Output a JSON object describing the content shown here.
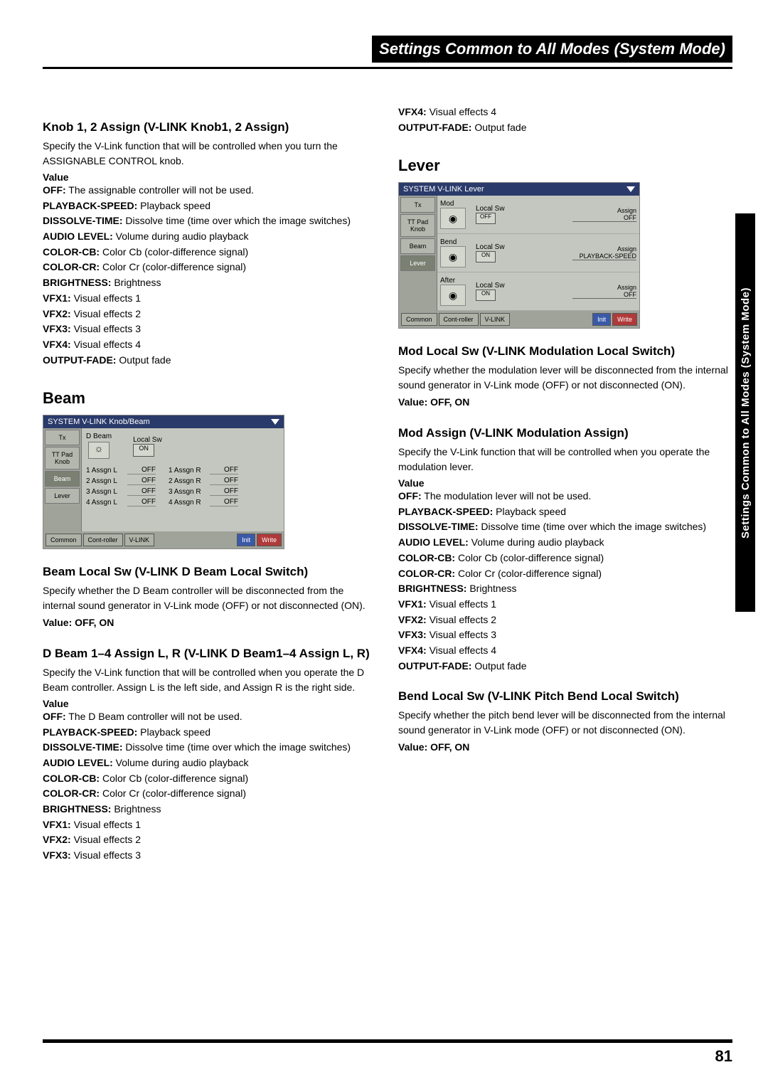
{
  "header": {
    "title": "Settings Common to All Modes (System Mode)"
  },
  "sidebar": {
    "label": "Settings Common to All Modes (System Mode)"
  },
  "footer": {
    "page": "81"
  },
  "knob": {
    "heading": "Knob 1, 2 Assign (V-LINK Knob1, 2 Assign)",
    "desc": "Specify the V-Link function that will be controlled when you turn the ASSIGNABLE CONTROL knob.",
    "value_label": "Value",
    "opts": [
      {
        "k": "OFF:",
        "v": "The assignable controller will not be used."
      },
      {
        "k": "PLAYBACK-SPEED:",
        "v": "Playback speed"
      },
      {
        "k": "DISSOLVE-TIME:",
        "v": "Dissolve time (time over which the image switches)"
      },
      {
        "k": "AUDIO LEVEL:",
        "v": "Volume during audio playback"
      },
      {
        "k": "COLOR-CB:",
        "v": "Color Cb (color-difference signal)"
      },
      {
        "k": "COLOR-CR:",
        "v": "Color Cr (color-difference signal)"
      },
      {
        "k": "BRIGHTNESS:",
        "v": "Brightness"
      },
      {
        "k": "VFX1:",
        "v": "Visual effects 1"
      },
      {
        "k": "VFX2:",
        "v": "Visual effects 2"
      },
      {
        "k": "VFX3:",
        "v": "Visual effects 3"
      },
      {
        "k": "VFX4:",
        "v": "Visual effects 4"
      },
      {
        "k": "OUTPUT-FADE:",
        "v": "Output fade"
      }
    ]
  },
  "beam_section": {
    "heading": "Beam"
  },
  "beam_ss": {
    "title": "SYSTEM V-LINK Knob/Beam",
    "tabs": [
      "Tx",
      "TT Pad Knob",
      "Beam",
      "Lever"
    ],
    "top_label": "D Beam",
    "local_sw_label": "Local Sw",
    "local_sw_val": "ON",
    "rows": [
      [
        "1 Assgn L",
        "OFF",
        "1 Assgn R",
        "OFF"
      ],
      [
        "2 Assgn L",
        "OFF",
        "2 Assgn R",
        "OFF"
      ],
      [
        "3 Assgn L",
        "OFF",
        "3 Assgn R",
        "OFF"
      ],
      [
        "4 Assgn L",
        "OFF",
        "4 Assgn R",
        "OFF"
      ]
    ],
    "bottom": [
      "Common",
      "Cont-roller",
      "V-LINK",
      "Init",
      "Write"
    ]
  },
  "beam_local": {
    "heading": "Beam Local Sw (V-LINK D Beam Local Switch)",
    "desc": "Specify whether the D Beam controller will be disconnected from the internal sound generator in V-Link mode (OFF) or not disconnected (ON).",
    "value": "Value: OFF, ON"
  },
  "dbeam_assign": {
    "heading": "D Beam 1–4 Assign L, R (V-LINK D Beam1–4 Assign L, R)",
    "desc": "Specify the V-Link function that will be controlled when you operate the D Beam controller. Assign L is the left side, and Assign R is the right side.",
    "value_label": "Value",
    "opts": [
      {
        "k": "OFF:",
        "v": "The D Beam controller will not be used."
      },
      {
        "k": "PLAYBACK-SPEED:",
        "v": "Playback speed"
      },
      {
        "k": "DISSOLVE-TIME:",
        "v": "Dissolve time (time over which the image switches)"
      },
      {
        "k": "AUDIO LEVEL:",
        "v": "Volume during audio playback"
      },
      {
        "k": "COLOR-CB:",
        "v": "Color Cb (color-difference signal)"
      },
      {
        "k": "COLOR-CR:",
        "v": "Color Cr (color-difference signal)"
      },
      {
        "k": "BRIGHTNESS:",
        "v": "Brightness"
      },
      {
        "k": "VFX1:",
        "v": "Visual effects 1"
      },
      {
        "k": "VFX2:",
        "v": "Visual effects 2"
      },
      {
        "k": "VFX3:",
        "v": "Visual effects 3"
      }
    ]
  },
  "col2_top": [
    {
      "k": "VFX4:",
      "v": "Visual effects 4"
    },
    {
      "k": "OUTPUT-FADE:",
      "v": "Output fade"
    }
  ],
  "lever_section": {
    "heading": "Lever"
  },
  "lever_ss": {
    "title": "SYSTEM V-LINK Lever",
    "tabs": [
      "Tx",
      "TT Pad Knob",
      "Beam",
      "Lever"
    ],
    "rows": [
      {
        "name": "Mod",
        "ls": "Local Sw",
        "sw": "OFF",
        "assign_label": "Assign",
        "assign_val": "OFF"
      },
      {
        "name": "Bend",
        "ls": "Local Sw",
        "sw": "ON",
        "assign_label": "Assign",
        "assign_val": "PLAYBACK-SPEED"
      },
      {
        "name": "After",
        "ls": "Local Sw",
        "sw": "ON",
        "assign_label": "Assign",
        "assign_val": "OFF"
      }
    ],
    "bottom": [
      "Common",
      "Cont-roller",
      "V-LINK",
      "Init",
      "Write"
    ]
  },
  "mod_local": {
    "heading": "Mod Local Sw (V-LINK Modulation Local Switch)",
    "desc": "Specify whether the modulation lever will be disconnected from the internal sound generator in V-Link mode (OFF) or not disconnected (ON).",
    "value": "Value: OFF, ON"
  },
  "mod_assign": {
    "heading": "Mod Assign (V-LINK Modulation Assign)",
    "desc": "Specify the V-Link function that will be controlled when you operate the modulation lever.",
    "value_label": "Value",
    "opts": [
      {
        "k": "OFF:",
        "v": "The modulation lever will not be used."
      },
      {
        "k": "PLAYBACK-SPEED:",
        "v": "Playback speed"
      },
      {
        "k": "DISSOLVE-TIME:",
        "v": "Dissolve time (time over which the image switches)"
      },
      {
        "k": "AUDIO LEVEL:",
        "v": "Volume during audio playback"
      },
      {
        "k": "COLOR-CB:",
        "v": "Color Cb (color-difference signal)"
      },
      {
        "k": "COLOR-CR:",
        "v": "Color Cr (color-difference signal)"
      },
      {
        "k": "BRIGHTNESS:",
        "v": "Brightness"
      },
      {
        "k": "VFX1:",
        "v": "Visual effects 1"
      },
      {
        "k": "VFX2:",
        "v": "Visual effects 2"
      },
      {
        "k": "VFX3:",
        "v": "Visual effects 3"
      },
      {
        "k": "VFX4:",
        "v": "Visual effects 4"
      },
      {
        "k": "OUTPUT-FADE:",
        "v": "Output fade"
      }
    ]
  },
  "bend_local": {
    "heading": "Bend Local Sw (V-LINK Pitch Bend Local Switch)",
    "desc": "Specify whether the pitch bend lever will be disconnected from the internal sound generator in V-Link mode (OFF) or not disconnected (ON).",
    "value": "Value: OFF, ON"
  }
}
